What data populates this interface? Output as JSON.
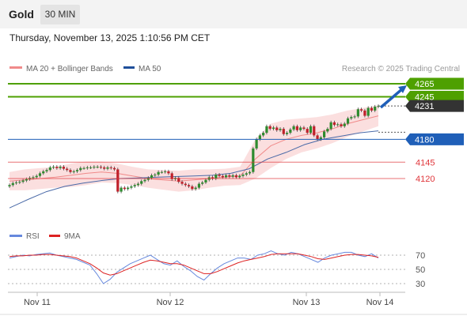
{
  "header": {
    "asset": "Gold",
    "interval": "30 MIN"
  },
  "datetime": "Thursday, November 13, 2025 1:10:56 PM CET",
  "legend": {
    "ma20_label": "MA 20 + Bollinger Bands",
    "ma50_label": "MA 50",
    "copyright": "Research © 2025 Trading Central"
  },
  "rsi_legend": {
    "rsi_label": "RSI",
    "ma_label": "9MA"
  },
  "colors": {
    "green": "#4ea000",
    "blue": "#1f5fb8",
    "red": "#e0363b",
    "dark": "#333333",
    "candle_up": "#2e8b2e",
    "candle_down": "#c0202a",
    "bollinger_fill": "#f9d4d4",
    "ma20": "#f08a8a",
    "ma50": "#4a6aa8",
    "rsi": "#6688dd",
    "rsi_ma": "#dd2222"
  },
  "chart_data": [
    {
      "type": "candlestick",
      "title": "Gold 30 MIN",
      "x_ticks": [
        "Nov 11",
        "Nov 12",
        "Nov 13",
        "Nov 14"
      ],
      "ylim": [
        4075,
        4285
      ],
      "levels": [
        {
          "value": 4265,
          "label": "4265",
          "color": "#4ea000",
          "style": "tag"
        },
        {
          "value": 4245,
          "label": "4245",
          "color": "#4ea000",
          "style": "tag"
        },
        {
          "value": 4231,
          "label": "4231",
          "color": "#333333",
          "style": "tag"
        },
        {
          "value": 4180,
          "label": "4180",
          "color": "#1f5fb8",
          "style": "tag"
        },
        {
          "value": 4145,
          "label": "4145",
          "color": "#e0363b",
          "style": "text"
        },
        {
          "value": 4120,
          "label": "4120",
          "color": "#e0363b",
          "style": "text"
        }
      ],
      "closes": [
        4110,
        4113,
        4114,
        4115,
        4117,
        4119,
        4121,
        4122,
        4124,
        4128,
        4131,
        4133,
        4137,
        4138,
        4136,
        4138,
        4135,
        4133,
        4130,
        4131,
        4133,
        4136,
        4136,
        4137,
        4137,
        4138,
        4138,
        4137,
        4135,
        4137,
        4136,
        4134,
        4100,
        4106,
        4104,
        4106,
        4108,
        4110,
        4112,
        4116,
        4118,
        4121,
        4125,
        4126,
        4130,
        4130,
        4131,
        4128,
        4119,
        4121,
        4115,
        4112,
        4110,
        4108,
        4104,
        4106,
        4112,
        4114,
        4118,
        4122,
        4120,
        4126,
        4124,
        4122,
        4125,
        4123,
        4125,
        4122,
        4124,
        4126,
        4128,
        4130,
        4166,
        4180,
        4186,
        4190,
        4200,
        4196,
        4198,
        4194,
        4196,
        4188,
        4190,
        4195,
        4200,
        4194,
        4198,
        4196,
        4190,
        4200,
        4186,
        4180,
        4183,
        4192,
        4196,
        4206,
        4202,
        4203,
        4200,
        4204,
        4212,
        4214,
        4215,
        4226,
        4224,
        4216,
        4228,
        4224,
        4230,
        4231
      ],
      "ma20_approx": [
        4116,
        4118,
        4120,
        4122,
        4125,
        4128,
        4130,
        4128,
        4124,
        4120,
        4118,
        4116,
        4118,
        4120,
        4122,
        4124,
        4150,
        4170,
        4180,
        4186,
        4190,
        4196,
        4204,
        4210,
        4216
      ],
      "ma50_approx": [
        4075,
        4088,
        4100,
        4108,
        4113,
        4117,
        4120,
        4121,
        4122,
        4123,
        4124,
        4125,
        4128,
        4135,
        4150,
        4160,
        4172,
        4180,
        4185,
        4190,
        4193
      ]
    },
    {
      "type": "line",
      "title": "RSI",
      "yticks": [
        70,
        50,
        30
      ],
      "series": [
        {
          "name": "RSI",
          "color": "#6688dd",
          "values": [
            66,
            68,
            70,
            69,
            71,
            72,
            73,
            70,
            68,
            66,
            64,
            60,
            56,
            44,
            30,
            36,
            46,
            52,
            58,
            62,
            66,
            70,
            64,
            58,
            56,
            62,
            54,
            48,
            40,
            35,
            44,
            52,
            58,
            62,
            66,
            66,
            64,
            70,
            72,
            76,
            72,
            70,
            74,
            72,
            68,
            64,
            60,
            66,
            70,
            72,
            74,
            74,
            70,
            68,
            72,
            66
          ]
        },
        {
          "name": "9MA",
          "color": "#dd2222",
          "values": [
            68,
            69,
            69,
            70,
            70,
            71,
            71,
            70,
            69,
            68,
            66,
            62,
            58,
            52,
            45,
            42,
            44,
            48,
            52,
            56,
            60,
            63,
            62,
            60,
            58,
            58,
            56,
            52,
            48,
            44,
            44,
            47,
            51,
            55,
            59,
            62,
            64,
            66,
            68,
            71,
            72,
            72,
            72,
            72,
            70,
            68,
            65,
            64,
            66,
            68,
            70,
            71,
            71,
            70,
            69,
            67
          ]
        }
      ]
    }
  ]
}
